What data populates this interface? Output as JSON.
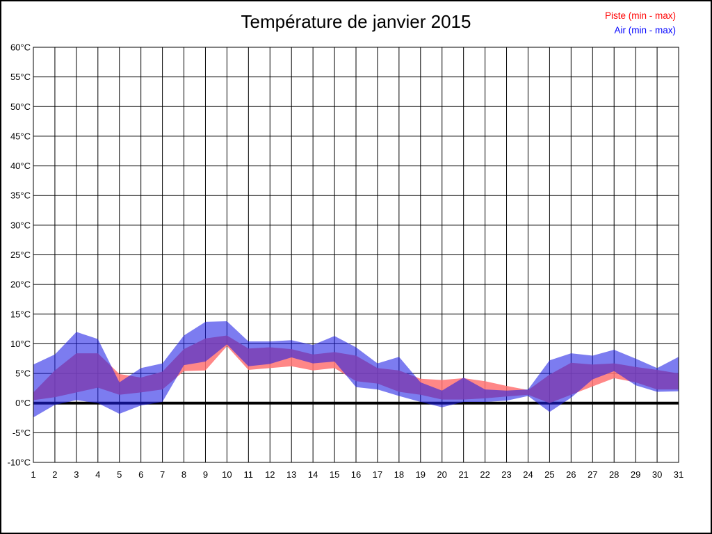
{
  "chart_data": {
    "type": "area",
    "title": "Température de janvier 2015",
    "xlabel": "",
    "ylabel": "",
    "xlim": [
      1,
      31
    ],
    "ylim": [
      -10,
      60
    ],
    "grid": true,
    "legend_position": "top-right",
    "zero_line_value": 0,
    "x_ticks": [
      "1",
      "2",
      "3",
      "4",
      "5",
      "6",
      "7",
      "8",
      "9",
      "10",
      "11",
      "12",
      "13",
      "14",
      "15",
      "16",
      "17",
      "18",
      "19",
      "20",
      "21",
      "22",
      "23",
      "24",
      "25",
      "26",
      "27",
      "28",
      "29",
      "30",
      "31"
    ],
    "y_ticks": [
      {
        "value": 60,
        "label": "60°C"
      },
      {
        "value": 55,
        "label": "55°C"
      },
      {
        "value": 50,
        "label": "50°C"
      },
      {
        "value": 45,
        "label": "45°C"
      },
      {
        "value": 40,
        "label": "40°C"
      },
      {
        "value": 35,
        "label": "35°C"
      },
      {
        "value": 30,
        "label": "30°C"
      },
      {
        "value": 25,
        "label": "25°C"
      },
      {
        "value": 20,
        "label": "20°C"
      },
      {
        "value": 15,
        "label": "15°C"
      },
      {
        "value": 10,
        "label": "10°C"
      },
      {
        "value": 5,
        "label": "5°C"
      },
      {
        "value": 0,
        "label": "0°C"
      },
      {
        "value": -5,
        "label": "-5°C"
      },
      {
        "value": -10,
        "label": "-10°C"
      }
    ],
    "days": [
      1,
      2,
      3,
      4,
      5,
      6,
      7,
      8,
      9,
      10,
      11,
      12,
      13,
      14,
      15,
      16,
      17,
      18,
      19,
      20,
      21,
      22,
      23,
      24,
      25,
      26,
      27,
      28,
      29,
      30,
      31
    ],
    "series": [
      {
        "name": "Piste (min - max)",
        "legend_color": "#ff0000",
        "fill": "rgba(255,114,114,0.85)",
        "min": [
          0.5,
          1.0,
          1.8,
          2.6,
          1.4,
          1.8,
          2.3,
          5.4,
          5.5,
          9.6,
          5.6,
          5.9,
          6.2,
          5.5,
          5.9,
          3.7,
          3.3,
          1.9,
          1.4,
          0.6,
          0.6,
          0.8,
          1.1,
          1.4,
          0.0,
          1.4,
          2.8,
          4.2,
          3.5,
          2.3,
          2.3
        ],
        "max": [
          1.8,
          5.5,
          8.4,
          8.4,
          4.9,
          4.3,
          5.3,
          9.1,
          10.9,
          11.4,
          9.2,
          9.4,
          9.1,
          8.2,
          8.6,
          8.0,
          5.9,
          5.5,
          4.1,
          3.9,
          4.2,
          3.7,
          2.9,
          2.2,
          4.8,
          6.8,
          6.5,
          6.7,
          6.1,
          5.6,
          5.0
        ]
      },
      {
        "name": "Air (min - max)",
        "legend_color": "#0000ff",
        "fill": "rgba(30,30,230,0.58)",
        "min": [
          -2.4,
          -0.3,
          0.5,
          0.0,
          -1.8,
          -0.4,
          0.2,
          6.4,
          7.0,
          9.9,
          6.2,
          6.6,
          7.7,
          6.7,
          7.0,
          2.7,
          2.3,
          1.2,
          0.2,
          -0.7,
          0.2,
          0.2,
          0.4,
          1.2,
          -1.5,
          0.9,
          4.0,
          5.4,
          3.0,
          1.9,
          2.0
        ],
        "max": [
          6.5,
          8.2,
          12.0,
          10.8,
          3.5,
          5.9,
          6.7,
          11.4,
          13.7,
          13.8,
          10.4,
          10.4,
          10.6,
          9.8,
          11.3,
          9.4,
          6.7,
          7.8,
          3.5,
          2.1,
          4.3,
          2.3,
          2.1,
          2.3,
          7.2,
          8.4,
          8.0,
          9.0,
          7.5,
          5.9,
          7.8
        ]
      }
    ],
    "colors": {
      "grid": "#000000",
      "frame": "#000000",
      "zero_line": "#000000",
      "title": "#000000"
    }
  }
}
